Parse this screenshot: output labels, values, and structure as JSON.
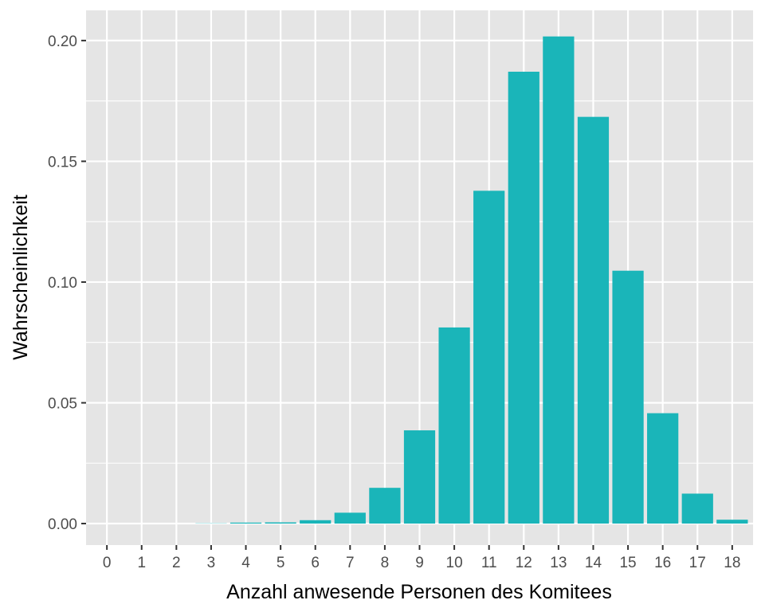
{
  "chart_data": {
    "type": "bar",
    "title": "",
    "xlabel": "Anzahl anwesende Personen des Komitees",
    "ylabel": "Wahrscheinlichkeit",
    "categories": [
      "0",
      "1",
      "2",
      "3",
      "4",
      "5",
      "6",
      "7",
      "8",
      "9",
      "10",
      "11",
      "12",
      "13",
      "14",
      "15",
      "16",
      "17",
      "18"
    ],
    "values": [
      0.0,
      0.0,
      0.0,
      0.0001,
      0.0004,
      0.0005,
      0.0014,
      0.0045,
      0.0148,
      0.0386,
      0.0812,
      0.1378,
      0.1871,
      0.2017,
      0.1684,
      0.1047,
      0.0457,
      0.0124,
      0.0016
    ],
    "ylim": [
      -0.0089,
      0.2125
    ],
    "yticks": [
      0.0,
      0.05,
      0.1,
      0.15,
      0.2
    ],
    "ytick_labels": [
      "0.00",
      "0.05",
      "0.10",
      "0.15",
      "0.20"
    ],
    "grid": true,
    "legend": "none",
    "colors": {
      "bar": "#1AB5B9",
      "panel": "#E5E5E5",
      "grid": "#FFFFFF"
    }
  }
}
